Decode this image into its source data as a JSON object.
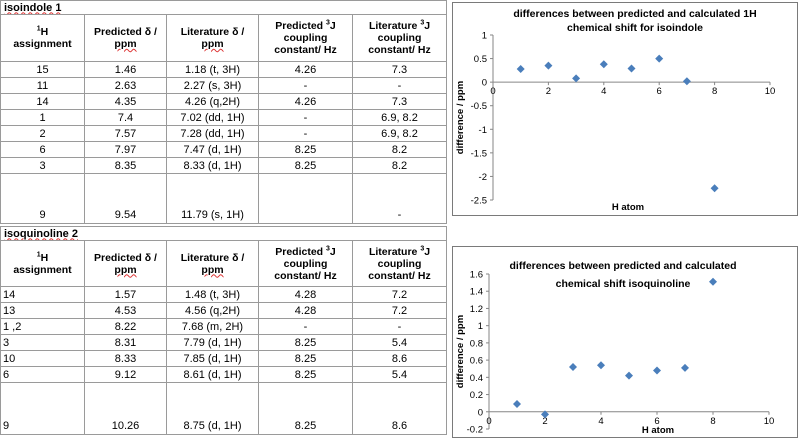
{
  "table1": {
    "title": "isoindole 1",
    "header": {
      "assign_line1": "1H",
      "assign_line2": "assignment",
      "pred_shift_line1": "Predicted δ /",
      "pred_shift_line2": "ppm",
      "lit_shift_line1": "Literature δ /",
      "lit_shift_line2": "ppm",
      "pred_j_line1": "Predicted 3J",
      "pred_j_line2": "coupling",
      "pred_j_line3": "constant/ Hz",
      "lit_j_line1": "Literature 3J",
      "lit_j_line2": "coupling",
      "lit_j_line3": "constant/ Hz"
    },
    "rows": [
      {
        "assignment": "15",
        "predicted": "1.46",
        "literature": "1.18 (t, 3H)",
        "pred_j": "4.26",
        "lit_j": "7.3"
      },
      {
        "assignment": "11",
        "predicted": "2.63",
        "literature": "2.27 (s, 3H)",
        "pred_j": "-",
        "lit_j": "-"
      },
      {
        "assignment": "14",
        "predicted": "4.35",
        "literature": "4.26 (q,2H)",
        "pred_j": "4.26",
        "lit_j": "7.3"
      },
      {
        "assignment": "1",
        "predicted": "7.4",
        "literature": "7.02 (dd, 1H)",
        "pred_j": "-",
        "lit_j": "6.9, 8.2"
      },
      {
        "assignment": "2",
        "predicted": "7.57",
        "literature": "7.28 (dd, 1H)",
        "pred_j": "-",
        "lit_j": "6.9, 8.2"
      },
      {
        "assignment": "6",
        "predicted": "7.97",
        "literature": "7.47 (d, 1H)",
        "pred_j": "8.25",
        "lit_j": "8.2"
      },
      {
        "assignment": "3",
        "predicted": "8.35",
        "literature": "8.33 (d, 1H)",
        "pred_j": "8.25",
        "lit_j": "8.2"
      },
      {
        "assignment": "9",
        "predicted": "9.54",
        "literature": "11.79 (s, 1H)",
        "pred_j": "",
        "lit_j": "-"
      }
    ]
  },
  "table2": {
    "title": "isoquinoline 2",
    "header": {
      "assign_line1": "1H",
      "assign_line2": "assignment",
      "pred_shift_line1": "Predicted δ /",
      "pred_shift_line2": "ppm",
      "lit_shift_line1": "Literature δ /",
      "lit_shift_line2": "ppm",
      "pred_j_line1": "Predicted 3J",
      "pred_j_line2": "coupling",
      "pred_j_line3": "constant/ Hz",
      "lit_j_line1": "Literature 3J",
      "lit_j_line2": "coupling",
      "lit_j_line3": "constant/ Hz"
    },
    "rows": [
      {
        "assignment": "14",
        "predicted": "1.57",
        "literature": "1.48 (t, 3H)",
        "pred_j": "4.28",
        "lit_j": "7.2"
      },
      {
        "assignment": "13",
        "predicted": "4.53",
        "literature": "4.56 (q,2H)",
        "pred_j": "4.28",
        "lit_j": "7.2"
      },
      {
        "assignment": "1 ,2",
        "predicted": "8.22",
        "literature": "7.68 (m, 2H)",
        "pred_j": "-",
        "lit_j": "-"
      },
      {
        "assignment": "3",
        "predicted": "8.31",
        "literature": "7.79 (d, 1H)",
        "pred_j": "8.25",
        "lit_j": "5.4"
      },
      {
        "assignment": "10",
        "predicted": "8.33",
        "literature": "7.85 (d, 1H)",
        "pred_j": "8.25",
        "lit_j": "8.6"
      },
      {
        "assignment": "6",
        "predicted": "9.12",
        "literature": "8.61  (d, 1H)",
        "pred_j": "8.25",
        "lit_j": "5.4"
      },
      {
        "assignment": "9",
        "predicted": "10.26",
        "literature": "8.75 (d, 1H)",
        "pred_j": "8.25",
        "lit_j": "8.6"
      }
    ]
  },
  "chart_data": [
    {
      "type": "scatter",
      "title_line1": "differences between predicted and calculated 1H",
      "title_line2": "chemical shift for isoindole",
      "xlabel": "H atom",
      "ylabel": "difference / ppm",
      "xlim": [
        0,
        10
      ],
      "ylim": [
        -2.5,
        1
      ],
      "xticks": [
        0,
        2,
        4,
        6,
        8,
        10
      ],
      "yticks": [
        1,
        0.5,
        0,
        -0.5,
        -1,
        -1.5,
        -2,
        -2.5
      ],
      "x": [
        1,
        2,
        3,
        4,
        5,
        6,
        7,
        8
      ],
      "y": [
        0.28,
        0.35,
        0.08,
        0.38,
        0.29,
        0.5,
        0.02,
        -2.25
      ],
      "marker_color": "#4a7ebb"
    },
    {
      "type": "scatter",
      "title_line1": "differences between predicted and calculated",
      "title_line2": "chemical shift isoquinoline",
      "xlabel": "H atom",
      "ylabel": "difference / ppm",
      "xlim": [
        0,
        10
      ],
      "ylim": [
        -0.2,
        1.6
      ],
      "xticks": [
        0,
        2,
        4,
        6,
        8,
        10
      ],
      "yticks": [
        1.6,
        1.4,
        1.2,
        1,
        0.8,
        0.6,
        0.4,
        0.2,
        0,
        -0.2
      ],
      "x": [
        1,
        2,
        3,
        4,
        5,
        6,
        7,
        8
      ],
      "y": [
        0.09,
        -0.03,
        0.52,
        0.54,
        0.42,
        0.48,
        0.51,
        1.51
      ],
      "marker_color": "#4a7ebb"
    }
  ]
}
